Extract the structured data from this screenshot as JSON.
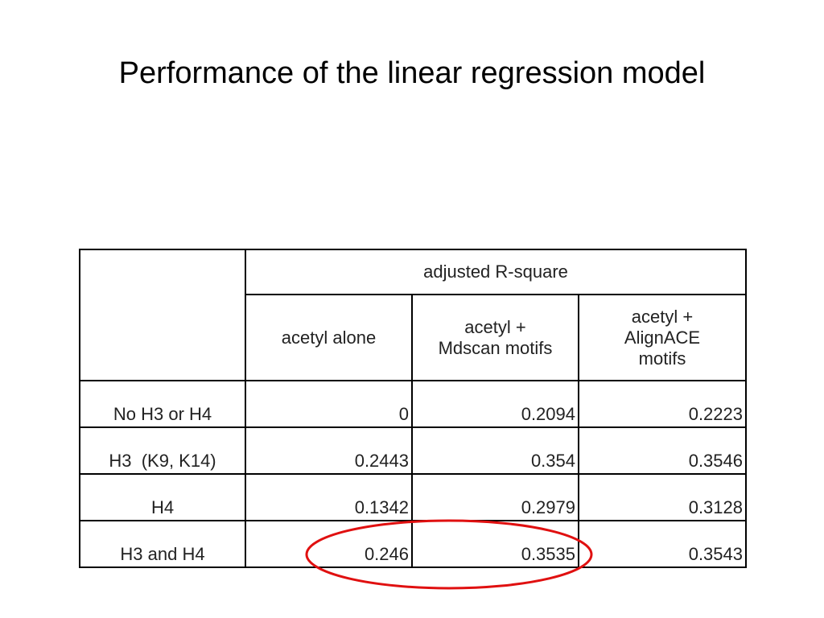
{
  "title": "Performance of the linear regression model",
  "table": {
    "group_header": "adjusted R-square",
    "columns": [
      {
        "lines": [
          "acetyl alone"
        ]
      },
      {
        "lines": [
          "acetyl +",
          "Mdscan motifs"
        ]
      },
      {
        "lines": [
          "acetyl +",
          "AlignACE",
          "motifs"
        ]
      }
    ],
    "rows": [
      [
        "No H3 or H4",
        "0",
        "0.2094",
        "0.2223"
      ],
      [
        "H3  (K9, K14)",
        "0.2443",
        "0.354",
        "0.3546"
      ],
      [
        "H4",
        "0.1342",
        "0.2979",
        "0.3128"
      ],
      [
        "H3 and H4",
        "0.246",
        "0.3535",
        "0.3543"
      ]
    ]
  }
}
